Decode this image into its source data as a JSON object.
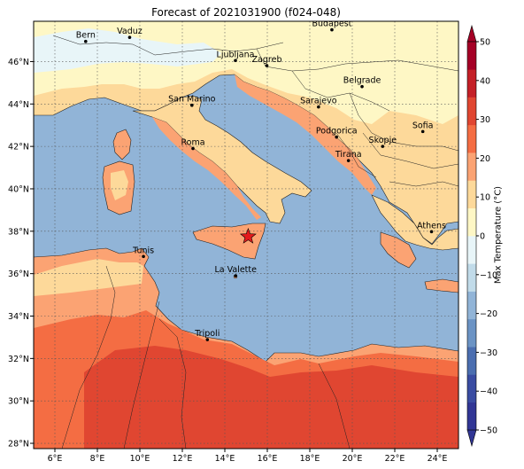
{
  "title": "Forecast of 2021031900 (f024-048)",
  "map": {
    "lon_range": [
      5,
      25
    ],
    "lat_range": [
      27.75,
      47.9
    ],
    "lon_ticks": [
      "6°E",
      "8°E",
      "10°E",
      "12°E",
      "14°E",
      "16°E",
      "18°E",
      "20°E",
      "22°E",
      "24°E"
    ],
    "lat_ticks": [
      "28°N",
      "30°N",
      "32°N",
      "34°N",
      "36°N",
      "38°N",
      "40°N",
      "42°N",
      "44°N",
      "46°N"
    ],
    "grid": true,
    "sea_color": "#91b4d7",
    "marker": {
      "name": "star",
      "lon": 15.1,
      "lat": 37.75,
      "color": "#e31a1c"
    }
  },
  "cities": [
    {
      "name": "Bern",
      "lon": 7.45,
      "lat": 46.95
    },
    {
      "name": "Vaduz",
      "lon": 9.52,
      "lat": 47.14
    },
    {
      "name": "Budapest",
      "lon": 19.04,
      "lat": 47.5
    },
    {
      "name": "Ljubljana",
      "lon": 14.5,
      "lat": 46.05
    },
    {
      "name": "Zagreb",
      "lon": 15.98,
      "lat": 45.81
    },
    {
      "name": "Belgrade",
      "lon": 20.46,
      "lat": 44.82
    },
    {
      "name": "San Marino",
      "lon": 12.45,
      "lat": 43.94
    },
    {
      "name": "Sarajevo",
      "lon": 18.41,
      "lat": 43.86
    },
    {
      "name": "Sofia",
      "lon": 23.32,
      "lat": 42.7
    },
    {
      "name": "Podgorica",
      "lon": 19.26,
      "lat": 42.44
    },
    {
      "name": "Skopje",
      "lon": 21.43,
      "lat": 42.0
    },
    {
      "name": "Roma",
      "lon": 12.5,
      "lat": 41.9
    },
    {
      "name": "Tirana",
      "lon": 19.82,
      "lat": 41.33
    },
    {
      "name": "Athens",
      "lon": 23.73,
      "lat": 37.98
    },
    {
      "name": "Tunis",
      "lon": 10.17,
      "lat": 36.81
    },
    {
      "name": "La Valette",
      "lon": 14.51,
      "lat": 35.9
    },
    {
      "name": "Tripoli",
      "lon": 13.18,
      "lat": 32.89
    }
  ],
  "colorbar": {
    "label": "Max Temperature (°C)",
    "ticks": [
      "−50",
      "−40",
      "−30",
      "−20",
      "−10",
      "0",
      "10",
      "20",
      "30",
      "40",
      "50"
    ],
    "colors": [
      "#313695",
      "#3a4ca2",
      "#4b6eb0",
      "#6b93c4",
      "#91b4d7",
      "#c1dbe9",
      "#e8f5f8",
      "#fef7c5",
      "#fdd99a",
      "#fba373",
      "#f46d43",
      "#e04631",
      "#c42027",
      "#a50026"
    ]
  }
}
